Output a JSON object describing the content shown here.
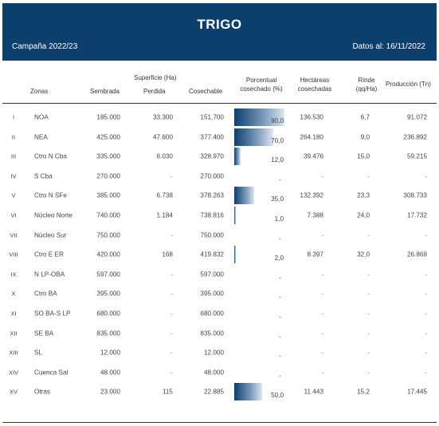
{
  "header": {
    "title": "TRIGO",
    "campaign": "Campaña 2022/23",
    "date": "Datos al: 16/11/2022"
  },
  "columns": {
    "zonas": "Zonas",
    "superficie": "Superficie (Ha)",
    "sembrada": "Sembrada",
    "perdida": "Perdida",
    "cosechable": "Cosechable",
    "porcentual_1": "Porcentual",
    "porcentual_2": "cosechado (%)",
    "hectareas_1": "Hectáreas",
    "hectareas_2": "cosechadas",
    "rinde_1": "Rinde",
    "rinde_2": "(qq/Ha)",
    "produccion": "Producción (Tn)"
  },
  "colors": {
    "header_bg": "#0d3f6e",
    "bar": "#0d3f6e"
  },
  "rows": [
    {
      "num": "I",
      "zona": "NOA",
      "sembrada": "185.000",
      "perdida": "33.300",
      "cosechable": "151.700",
      "pct": "90,0",
      "pct_value": 90,
      "hect": "136.530",
      "rinde": "6,7",
      "prod": "91.072"
    },
    {
      "num": "II",
      "zona": "NEA",
      "sembrada": "425.000",
      "perdida": "47.600",
      "cosechable": "377.400",
      "pct": "70,0",
      "pct_value": 70,
      "hect": "264.180",
      "rinde": "9,0",
      "prod": "236.892"
    },
    {
      "num": "III",
      "zona": "Ctro N Cba",
      "sembrada": "335.000",
      "perdida": "6.030",
      "cosechable": "328.970",
      "pct": "12,0",
      "pct_value": 12,
      "hect": "39.476",
      "rinde": "15,0",
      "prod": "59.215"
    },
    {
      "num": "IV",
      "zona": "S Cba",
      "sembrada": "270.000",
      "perdida": "-",
      "cosechable": "270.000",
      "pct": "-",
      "pct_value": 0,
      "hect": "-",
      "rinde": "-",
      "prod": "-"
    },
    {
      "num": "V",
      "zona": "Ctro N SFe",
      "sembrada": "385.000",
      "perdida": "6.738",
      "cosechable": "378.263",
      "pct": "35,0",
      "pct_value": 35,
      "hect": "132.392",
      "rinde": "23,3",
      "prod": "308.733"
    },
    {
      "num": "VI",
      "zona": "Núcleo Norte",
      "sembrada": "740.000",
      "perdida": "1.184",
      "cosechable": "738.816",
      "pct": "1,0",
      "pct_value": 1,
      "hect": "7.388",
      "rinde": "24,0",
      "prod": "17.732"
    },
    {
      "num": "VII",
      "zona": "Núcleo Sur",
      "sembrada": "750.000",
      "perdida": "-",
      "cosechable": "750.000",
      "pct": "-",
      "pct_value": 0,
      "hect": "-",
      "rinde": "-",
      "prod": "-"
    },
    {
      "num": "VIII",
      "zona": "Ctro E ER",
      "sembrada": "420.000",
      "perdida": "168",
      "cosechable": "419.832",
      "pct": "2,0",
      "pct_value": 2,
      "hect": "8.397",
      "rinde": "32,0",
      "prod": "26.868"
    },
    {
      "num": "IX",
      "zona": "N LP-OBA",
      "sembrada": "597.000",
      "perdida": "-",
      "cosechable": "597.000",
      "pct": "-",
      "pct_value": 0,
      "hect": "-",
      "rinde": "-",
      "prod": "-"
    },
    {
      "num": "X",
      "zona": "Ctro BA",
      "sembrada": "395.000",
      "perdida": "-",
      "cosechable": "395.000",
      "pct": "-",
      "pct_value": 0,
      "hect": "-",
      "rinde": "-",
      "prod": "-"
    },
    {
      "num": "XI",
      "zona": "SO BA-S LP",
      "sembrada": "680.000",
      "perdida": "-",
      "cosechable": "680.000",
      "pct": "-",
      "pct_value": 0,
      "hect": "-",
      "rinde": "-",
      "prod": "-"
    },
    {
      "num": "XII",
      "zona": "SE BA",
      "sembrada": "835.000",
      "perdida": "-",
      "cosechable": "835.000",
      "pct": "-",
      "pct_value": 0,
      "hect": "-",
      "rinde": "-",
      "prod": "-"
    },
    {
      "num": "XIII",
      "zona": "SL",
      "sembrada": "12.000",
      "perdida": "-",
      "cosechable": "12.000",
      "pct": "-",
      "pct_value": 0,
      "hect": "-",
      "rinde": "-",
      "prod": "-"
    },
    {
      "num": "XIV",
      "zona": "Cuenca Sal",
      "sembrada": "48.000",
      "perdida": "-",
      "cosechable": "48.000",
      "pct": "-",
      "pct_value": 0,
      "hect": "-",
      "rinde": "-",
      "prod": "-"
    },
    {
      "num": "XV",
      "zona": "Otras",
      "sembrada": "23.000",
      "perdida": "115",
      "cosechable": "22.885",
      "pct": "50,0",
      "pct_value": 50,
      "hect": "11.443",
      "rinde": "15,2",
      "prod": "17.445"
    }
  ]
}
